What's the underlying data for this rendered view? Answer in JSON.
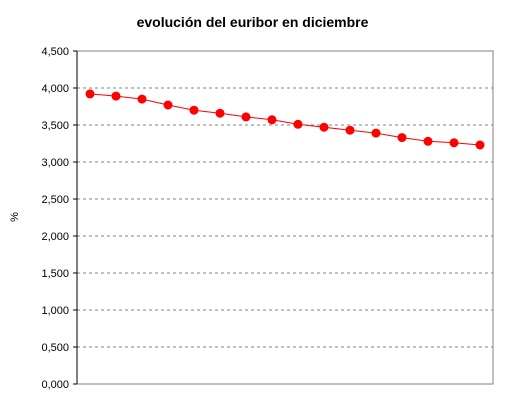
{
  "chart_data": {
    "type": "line",
    "title": "evolución del euribor en diciembre",
    "xlabel": "",
    "ylabel": "%",
    "ylim": [
      0,
      4.5
    ],
    "yticks": [
      0,
      0.5,
      1.0,
      1.5,
      2.0,
      2.5,
      3.0,
      3.5,
      4.0,
      4.5
    ],
    "ytick_labels": [
      "0,000",
      "0,500",
      "1,000",
      "1,500",
      "2,000",
      "2,500",
      "3,000",
      "3,500",
      "4,000",
      "4,500"
    ],
    "grid": "horizontal-dashed",
    "legend": "none",
    "series": [
      {
        "color": "#ff0000",
        "marker_color": "#ff0000",
        "values": [
          3.92,
          3.89,
          3.85,
          3.77,
          3.7,
          3.66,
          3.61,
          3.57,
          3.51,
          3.47,
          3.43,
          3.39,
          3.33,
          3.28,
          3.26,
          3.23
        ]
      }
    ]
  }
}
